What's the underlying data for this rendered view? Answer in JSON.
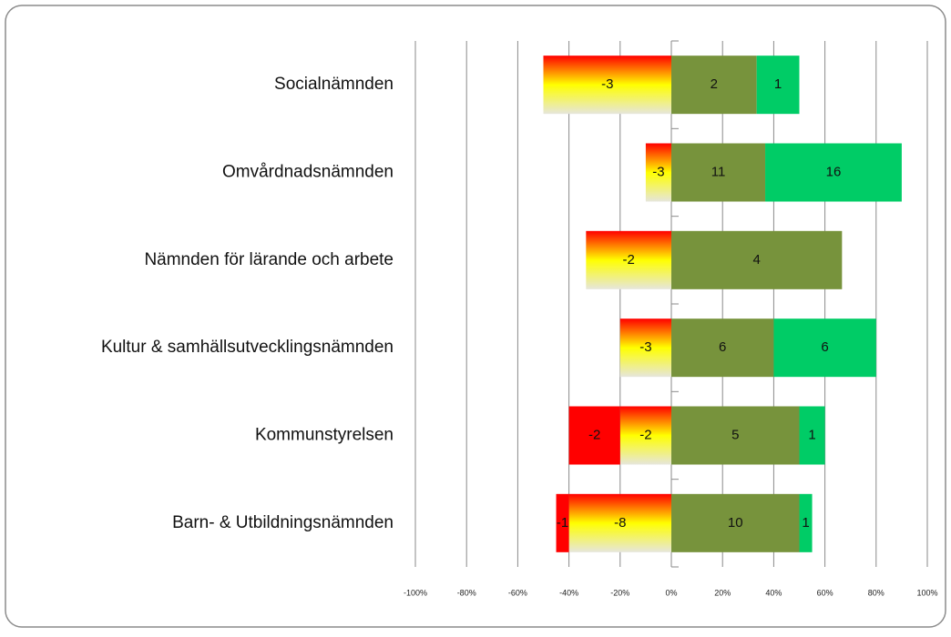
{
  "chart_data": {
    "type": "bar",
    "orientation": "horizontal",
    "stacking": "percent",
    "categories": [
      "Socialnämnden",
      "Omvårdnadsnämnden",
      "Nämnden för lärande och arbete",
      "Kultur & samhällsutvecklingsnämnden",
      "Kommunstyrelsen",
      "Barn- & Utbildningsnämnden"
    ],
    "series": [
      {
        "color": "#ff0000",
        "values": [
          null,
          null,
          null,
          null,
          -2,
          -1
        ]
      },
      {
        "color": "gradient",
        "values": [
          -3,
          -3,
          -2,
          -3,
          -2,
          -8
        ]
      },
      {
        "color": "#77933c",
        "values": [
          2,
          11,
          4,
          6,
          5,
          10
        ]
      },
      {
        "color": "#00cc66",
        "values": [
          1,
          16,
          null,
          6,
          1,
          1
        ]
      }
    ],
    "xlim": [
      -100,
      100
    ],
    "xticks": [
      {
        "value": -100,
        "label": "-100%"
      },
      {
        "value": -80,
        "label": "-80%"
      },
      {
        "value": -60,
        "label": "-60%"
      },
      {
        "value": -40,
        "label": "-40%"
      },
      {
        "value": -20,
        "label": "-20%"
      },
      {
        "value": 0,
        "label": "0%"
      },
      {
        "value": 20,
        "label": "20%"
      },
      {
        "value": 40,
        "label": "40%"
      },
      {
        "value": 60,
        "label": "60%"
      },
      {
        "value": 80,
        "label": "80%"
      },
      {
        "value": 100,
        "label": "100%"
      }
    ],
    "grid": true
  }
}
